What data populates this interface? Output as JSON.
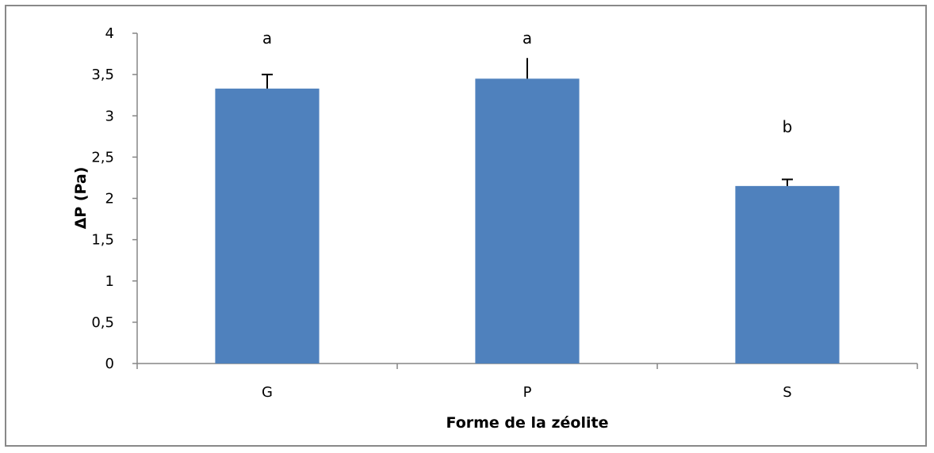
{
  "chart_data": {
    "type": "bar",
    "categories": [
      "G",
      "P",
      "S"
    ],
    "values": [
      3.33,
      3.45,
      2.15
    ],
    "error_bars": [
      0.17,
      0.25,
      0.08
    ],
    "significance_letters": [
      "a",
      "a",
      "b"
    ],
    "xlabel": "Forme de la zéolite",
    "ylabel": "ΔP (Pa)",
    "ylim": [
      0,
      4
    ],
    "yticks": [
      0,
      0.5,
      1,
      1.5,
      2,
      2.5,
      3,
      3.5,
      4
    ],
    "ytick_labels": [
      "0",
      "0,5",
      "1",
      "1,5",
      "2",
      "2,5",
      "3",
      "3,5",
      "4"
    ],
    "grid": false,
    "bar_color": "#4f81bd"
  }
}
